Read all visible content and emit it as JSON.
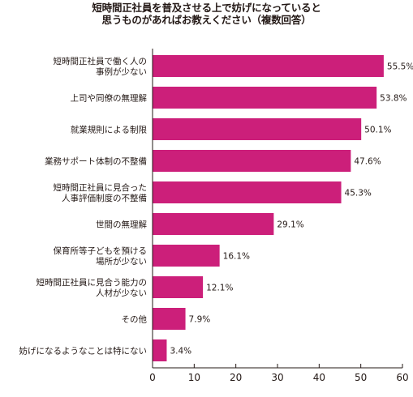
{
  "chart_data": {
    "type": "bar",
    "orientation": "horizontal",
    "title_lines": [
      "短時間正社員を普及させる上で妨げになっていると",
      "思うものがあればお教えください（複数回答）"
    ],
    "categories": [
      [
        "短時間正社員で働く人の",
        "事例が少ない"
      ],
      [
        "上司や同僚の無理解"
      ],
      [
        "就業規則による制限"
      ],
      [
        "業務サポート体制の不整備"
      ],
      [
        "短時間正社員に見合った",
        "人事評価制度の不整備"
      ],
      [
        "世間の無理解"
      ],
      [
        "保育所等子どもを預ける",
        "場所が少ない"
      ],
      [
        "短時間正社員に見合う能力の",
        "人材が少ない"
      ],
      [
        "その他"
      ],
      [
        "妨げになるようなことは特にない"
      ]
    ],
    "values": [
      55.5,
      53.8,
      50.1,
      47.6,
      45.3,
      29.1,
      16.1,
      12.1,
      7.9,
      3.4
    ],
    "value_suffix": "%",
    "xlim": [
      0,
      60
    ],
    "xticks": [
      0,
      10,
      20,
      30,
      40,
      50,
      60
    ],
    "xlabel": "",
    "ylabel": "",
    "bar_color": "#cc1f7a",
    "grid": false,
    "legend": "none"
  }
}
